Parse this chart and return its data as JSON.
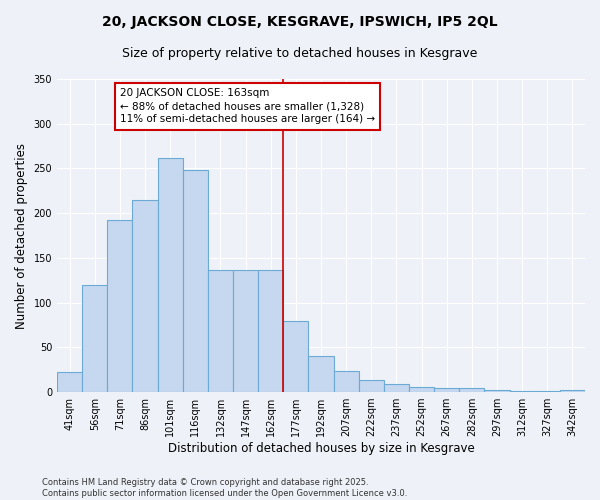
{
  "title": "20, JACKSON CLOSE, KESGRAVE, IPSWICH, IP5 2QL",
  "subtitle": "Size of property relative to detached houses in Kesgrave",
  "xlabel": "Distribution of detached houses by size in Kesgrave",
  "ylabel": "Number of detached properties",
  "bar_labels": [
    "41sqm",
    "56sqm",
    "71sqm",
    "86sqm",
    "101sqm",
    "116sqm",
    "132sqm",
    "147sqm",
    "162sqm",
    "177sqm",
    "192sqm",
    "207sqm",
    "222sqm",
    "237sqm",
    "252sqm",
    "267sqm",
    "282sqm",
    "297sqm",
    "312sqm",
    "327sqm",
    "342sqm"
  ],
  "bar_values": [
    22,
    120,
    192,
    215,
    262,
    248,
    136,
    136,
    136,
    80,
    40,
    24,
    14,
    9,
    6,
    5,
    5,
    2,
    1,
    1,
    2
  ],
  "bar_color": "#c5d8ef",
  "bar_edge_color": "#6aaad4",
  "vline_index": 8,
  "annotation_text": "20 JACKSON CLOSE: 163sqm\n← 88% of detached houses are smaller (1,328)\n11% of semi-detached houses are larger (164) →",
  "annotation_box_color": "#ffffff",
  "annotation_box_edge": "#cc0000",
  "vline_color": "#cc0000",
  "footer": "Contains HM Land Registry data © Crown copyright and database right 2025.\nContains public sector information licensed under the Open Government Licence v3.0.",
  "ylim": [
    0,
    350
  ],
  "yticks": [
    0,
    50,
    100,
    150,
    200,
    250,
    300,
    350
  ],
  "background_color": "#eef2f8",
  "grid_color": "#ffffff",
  "title_fontsize": 10,
  "subtitle_fontsize": 9,
  "axis_label_fontsize": 8.5,
  "tick_fontsize": 7,
  "footer_fontsize": 6,
  "annotation_fontsize": 7.5
}
